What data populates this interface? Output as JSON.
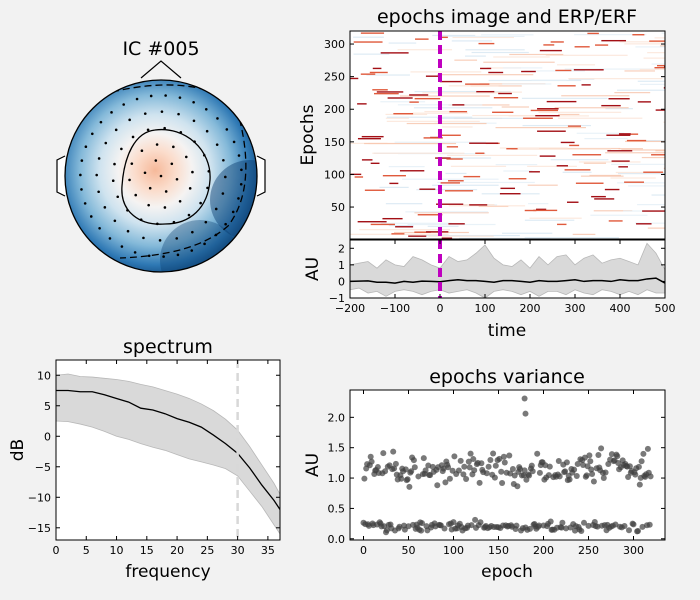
{
  "chart_data": [
    {
      "type": "heatmap",
      "name": "topomap",
      "title": "IC #005",
      "sensor_count": 96,
      "colormap": "RdBu_r",
      "center_polarity": "positive (red)",
      "edge_polarity": "negative (blue)"
    },
    {
      "type": "heatmap",
      "name": "epochs-image",
      "title": "epochs image and ERP/ERF",
      "ylabel": "Epochs",
      "yticks": [
        50,
        100,
        150,
        200,
        250,
        300
      ],
      "ylim": [
        1,
        320
      ],
      "xlim": [
        -200,
        500
      ],
      "event_marker_x": 0,
      "event_marker_color": "#bf00bf",
      "colormap": "RdBu_r"
    },
    {
      "type": "area",
      "name": "erp",
      "xlabel": "time",
      "ylabel": "AU",
      "xlim": [
        -200,
        500
      ],
      "ylim": [
        -1,
        2.5
      ],
      "xticks": [
        -200,
        -100,
        0,
        100,
        200,
        300,
        400,
        500
      ],
      "yticks": [
        -1,
        0,
        1,
        2
      ],
      "event_marker_x": 0,
      "event_marker_color": "#bf00bf",
      "x": [
        -200,
        -180,
        -160,
        -140,
        -120,
        -100,
        -80,
        -60,
        -40,
        -20,
        0,
        20,
        40,
        60,
        80,
        100,
        120,
        140,
        160,
        180,
        200,
        220,
        240,
        260,
        280,
        300,
        320,
        340,
        360,
        380,
        400,
        420,
        440,
        460,
        480,
        500
      ],
      "mean": [
        0,
        0.02,
        0.03,
        -0.05,
        -0.05,
        -0.1,
        0,
        -0.05,
        0.02,
        0,
        -0.02,
        0.05,
        0.1,
        0.05,
        0.05,
        0,
        -0.05,
        0.05,
        0.05,
        0,
        -0.05,
        0.05,
        0,
        0,
        0.05,
        0.1,
        0,
        0.05,
        0.05,
        0,
        0.1,
        0.05,
        0.05,
        0.15,
        0.2,
        -0.1
      ],
      "upper": [
        1.0,
        1.1,
        1.2,
        0.8,
        1.3,
        1.0,
        0.9,
        1.5,
        1.3,
        1.0,
        0.8,
        1.5,
        1.2,
        1.3,
        1.7,
        2.2,
        1.4,
        1.0,
        0.9,
        1.3,
        0.8,
        1.5,
        1.0,
        1.5,
        1.6,
        1.0,
        1.4,
        1.6,
        1.1,
        1.3,
        1.4,
        1.2,
        1.0,
        2.3,
        1.7,
        0.7
      ],
      "lower": [
        -0.5,
        -0.4,
        -0.7,
        -0.6,
        -0.9,
        -0.6,
        -0.5,
        -0.6,
        -0.8,
        -0.6,
        -0.5,
        -0.7,
        -0.6,
        -0.5,
        -0.7,
        -1.0,
        -0.6,
        -0.5,
        -0.6,
        -0.8,
        -0.6,
        -0.9,
        -0.6,
        -0.6,
        -0.8,
        -0.5,
        -0.7,
        -0.8,
        -0.5,
        -0.6,
        -0.8,
        -0.6,
        -0.8,
        -0.5,
        -0.7,
        -0.7
      ],
      "band_color": "#d9d9d9"
    },
    {
      "type": "area",
      "name": "spectrum",
      "title": "spectrum",
      "xlabel": "frequency",
      "ylabel": "dB",
      "xlim": [
        0,
        37
      ],
      "ylim": [
        -17,
        12.5
      ],
      "xticks": [
        0,
        5,
        10,
        15,
        20,
        25,
        30,
        35
      ],
      "yticks": [
        -15,
        -10,
        -5,
        0,
        5,
        10
      ],
      "marker_x": 30,
      "x": [
        0,
        2,
        4,
        6,
        8,
        10,
        12,
        14,
        16,
        18,
        20,
        22,
        24,
        26,
        28,
        30,
        32,
        34,
        36,
        37
      ],
      "mean": [
        7.5,
        7.5,
        7.3,
        7.3,
        6.8,
        6.2,
        5.6,
        4.6,
        4.3,
        3.7,
        2.9,
        2.3,
        1.5,
        0.2,
        -1.2,
        -2.8,
        -5.2,
        -8.0,
        -10.5,
        -12.0
      ],
      "upper": [
        10.0,
        10.2,
        9.8,
        9.7,
        9.5,
        9.3,
        9.0,
        8.5,
        8.1,
        7.5,
        6.9,
        6.2,
        5.3,
        4.2,
        2.8,
        1.0,
        -1.7,
        -4.7,
        -7.7,
        -9.5
      ],
      "lower": [
        2.5,
        2.4,
        2.0,
        1.5,
        0.8,
        0.0,
        -0.5,
        -1.2,
        -1.8,
        -2.3,
        -3.0,
        -3.7,
        -4.2,
        -4.7,
        -5.3,
        -6.5,
        -9.0,
        -11.5,
        -14.5,
        -16.0
      ],
      "band_color": "#d9d9d9"
    },
    {
      "type": "scatter",
      "name": "epochs-variance",
      "title": "epochs variance",
      "xlabel": "epoch",
      "ylabel": "AU",
      "xlim": [
        -15,
        335
      ],
      "ylim": [
        -0.02,
        2.45
      ],
      "xticks": [
        0,
        50,
        100,
        150,
        200,
        250,
        300
      ],
      "yticks": [
        0.0,
        0.5,
        1.0,
        1.5,
        2.0
      ],
      "point_color": "#404040",
      "n_points": 320,
      "high_cluster_mean": 1.15,
      "low_cluster_mean": 0.2,
      "outliers": [
        {
          "x": 179,
          "y": 2.31
        },
        {
          "x": 180,
          "y": 2.06
        }
      ]
    }
  ]
}
